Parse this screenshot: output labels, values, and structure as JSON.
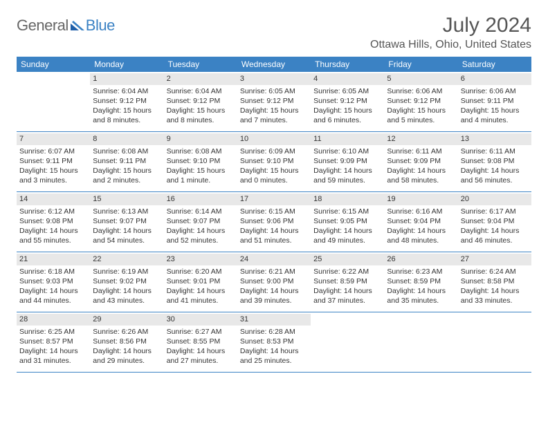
{
  "logo": {
    "text1": "General",
    "text2": "Blue"
  },
  "title": "July 2024",
  "location": "Ottawa Hills, Ohio, United States",
  "colors": {
    "header_bg": "#3b82c4",
    "header_text": "#ffffff",
    "daynum_bg": "#e8e8e8",
    "row_border": "#3b82c4",
    "text": "#333333"
  },
  "dow": [
    "Sunday",
    "Monday",
    "Tuesday",
    "Wednesday",
    "Thursday",
    "Friday",
    "Saturday"
  ],
  "weeks": [
    [
      {
        "num": "",
        "sunrise": "",
        "sunset": "",
        "daylight": ""
      },
      {
        "num": "1",
        "sunrise": "Sunrise: 6:04 AM",
        "sunset": "Sunset: 9:12 PM",
        "daylight": "Daylight: 15 hours and 8 minutes."
      },
      {
        "num": "2",
        "sunrise": "Sunrise: 6:04 AM",
        "sunset": "Sunset: 9:12 PM",
        "daylight": "Daylight: 15 hours and 8 minutes."
      },
      {
        "num": "3",
        "sunrise": "Sunrise: 6:05 AM",
        "sunset": "Sunset: 9:12 PM",
        "daylight": "Daylight: 15 hours and 7 minutes."
      },
      {
        "num": "4",
        "sunrise": "Sunrise: 6:05 AM",
        "sunset": "Sunset: 9:12 PM",
        "daylight": "Daylight: 15 hours and 6 minutes."
      },
      {
        "num": "5",
        "sunrise": "Sunrise: 6:06 AM",
        "sunset": "Sunset: 9:12 PM",
        "daylight": "Daylight: 15 hours and 5 minutes."
      },
      {
        "num": "6",
        "sunrise": "Sunrise: 6:06 AM",
        "sunset": "Sunset: 9:11 PM",
        "daylight": "Daylight: 15 hours and 4 minutes."
      }
    ],
    [
      {
        "num": "7",
        "sunrise": "Sunrise: 6:07 AM",
        "sunset": "Sunset: 9:11 PM",
        "daylight": "Daylight: 15 hours and 3 minutes."
      },
      {
        "num": "8",
        "sunrise": "Sunrise: 6:08 AM",
        "sunset": "Sunset: 9:11 PM",
        "daylight": "Daylight: 15 hours and 2 minutes."
      },
      {
        "num": "9",
        "sunrise": "Sunrise: 6:08 AM",
        "sunset": "Sunset: 9:10 PM",
        "daylight": "Daylight: 15 hours and 1 minute."
      },
      {
        "num": "10",
        "sunrise": "Sunrise: 6:09 AM",
        "sunset": "Sunset: 9:10 PM",
        "daylight": "Daylight: 15 hours and 0 minutes."
      },
      {
        "num": "11",
        "sunrise": "Sunrise: 6:10 AM",
        "sunset": "Sunset: 9:09 PM",
        "daylight": "Daylight: 14 hours and 59 minutes."
      },
      {
        "num": "12",
        "sunrise": "Sunrise: 6:11 AM",
        "sunset": "Sunset: 9:09 PM",
        "daylight": "Daylight: 14 hours and 58 minutes."
      },
      {
        "num": "13",
        "sunrise": "Sunrise: 6:11 AM",
        "sunset": "Sunset: 9:08 PM",
        "daylight": "Daylight: 14 hours and 56 minutes."
      }
    ],
    [
      {
        "num": "14",
        "sunrise": "Sunrise: 6:12 AM",
        "sunset": "Sunset: 9:08 PM",
        "daylight": "Daylight: 14 hours and 55 minutes."
      },
      {
        "num": "15",
        "sunrise": "Sunrise: 6:13 AM",
        "sunset": "Sunset: 9:07 PM",
        "daylight": "Daylight: 14 hours and 54 minutes."
      },
      {
        "num": "16",
        "sunrise": "Sunrise: 6:14 AM",
        "sunset": "Sunset: 9:07 PM",
        "daylight": "Daylight: 14 hours and 52 minutes."
      },
      {
        "num": "17",
        "sunrise": "Sunrise: 6:15 AM",
        "sunset": "Sunset: 9:06 PM",
        "daylight": "Daylight: 14 hours and 51 minutes."
      },
      {
        "num": "18",
        "sunrise": "Sunrise: 6:15 AM",
        "sunset": "Sunset: 9:05 PM",
        "daylight": "Daylight: 14 hours and 49 minutes."
      },
      {
        "num": "19",
        "sunrise": "Sunrise: 6:16 AM",
        "sunset": "Sunset: 9:04 PM",
        "daylight": "Daylight: 14 hours and 48 minutes."
      },
      {
        "num": "20",
        "sunrise": "Sunrise: 6:17 AM",
        "sunset": "Sunset: 9:04 PM",
        "daylight": "Daylight: 14 hours and 46 minutes."
      }
    ],
    [
      {
        "num": "21",
        "sunrise": "Sunrise: 6:18 AM",
        "sunset": "Sunset: 9:03 PM",
        "daylight": "Daylight: 14 hours and 44 minutes."
      },
      {
        "num": "22",
        "sunrise": "Sunrise: 6:19 AM",
        "sunset": "Sunset: 9:02 PM",
        "daylight": "Daylight: 14 hours and 43 minutes."
      },
      {
        "num": "23",
        "sunrise": "Sunrise: 6:20 AM",
        "sunset": "Sunset: 9:01 PM",
        "daylight": "Daylight: 14 hours and 41 minutes."
      },
      {
        "num": "24",
        "sunrise": "Sunrise: 6:21 AM",
        "sunset": "Sunset: 9:00 PM",
        "daylight": "Daylight: 14 hours and 39 minutes."
      },
      {
        "num": "25",
        "sunrise": "Sunrise: 6:22 AM",
        "sunset": "Sunset: 8:59 PM",
        "daylight": "Daylight: 14 hours and 37 minutes."
      },
      {
        "num": "26",
        "sunrise": "Sunrise: 6:23 AM",
        "sunset": "Sunset: 8:59 PM",
        "daylight": "Daylight: 14 hours and 35 minutes."
      },
      {
        "num": "27",
        "sunrise": "Sunrise: 6:24 AM",
        "sunset": "Sunset: 8:58 PM",
        "daylight": "Daylight: 14 hours and 33 minutes."
      }
    ],
    [
      {
        "num": "28",
        "sunrise": "Sunrise: 6:25 AM",
        "sunset": "Sunset: 8:57 PM",
        "daylight": "Daylight: 14 hours and 31 minutes."
      },
      {
        "num": "29",
        "sunrise": "Sunrise: 6:26 AM",
        "sunset": "Sunset: 8:56 PM",
        "daylight": "Daylight: 14 hours and 29 minutes."
      },
      {
        "num": "30",
        "sunrise": "Sunrise: 6:27 AM",
        "sunset": "Sunset: 8:55 PM",
        "daylight": "Daylight: 14 hours and 27 minutes."
      },
      {
        "num": "31",
        "sunrise": "Sunrise: 6:28 AM",
        "sunset": "Sunset: 8:53 PM",
        "daylight": "Daylight: 14 hours and 25 minutes."
      },
      {
        "num": "",
        "sunrise": "",
        "sunset": "",
        "daylight": ""
      },
      {
        "num": "",
        "sunrise": "",
        "sunset": "",
        "daylight": ""
      },
      {
        "num": "",
        "sunrise": "",
        "sunset": "",
        "daylight": ""
      }
    ]
  ]
}
